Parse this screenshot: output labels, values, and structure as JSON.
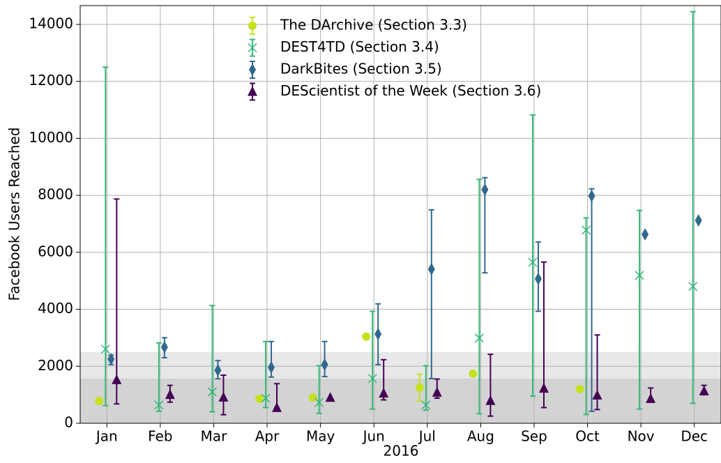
{
  "chart_data": {
    "type": "errorbar",
    "x_label": "2016",
    "y_label": "Facebook Users Reached",
    "categories": [
      "Jan",
      "Feb",
      "Mar",
      "Apr",
      "May",
      "Jun",
      "Jul",
      "Aug",
      "Sep",
      "Oct",
      "Nov",
      "Dec"
    ],
    "ylim": [
      0,
      14660
    ],
    "yticks": [
      0,
      2000,
      4000,
      6000,
      8000,
      10000,
      12000,
      14000
    ],
    "grid": true,
    "legend": "upper center",
    "bands": [
      {
        "from": 0,
        "to": 2500,
        "color": "#e8e8e8"
      },
      {
        "from": 0,
        "to": 1570,
        "color": "#d3d3d3"
      }
    ],
    "series": [
      {
        "name": "The DArchive (Section 3.3)",
        "color": "#c7e020",
        "marker": "circle",
        "values": [
          780,
          null,
          null,
          860,
          900,
          3040,
          1250,
          1740,
          null,
          1200,
          null,
          null
        ],
        "lower": [
          null,
          null,
          null,
          null,
          null,
          null,
          780,
          null,
          null,
          null,
          null,
          null
        ],
        "upper": [
          null,
          null,
          null,
          null,
          null,
          null,
          1720,
          null,
          null,
          null,
          null,
          null
        ]
      },
      {
        "name": "DEST4TD (Section 3.4)",
        "color": "#35b779",
        "marker": "x",
        "values": [
          2600,
          640,
          1100,
          880,
          730,
          1570,
          640,
          2990,
          5650,
          6780,
          5190,
          4800
        ],
        "lower": [
          620,
          420,
          400,
          550,
          350,
          500,
          460,
          330,
          950,
          310,
          500,
          700
        ],
        "upper": [
          12500,
          2820,
          4130,
          2870,
          2020,
          3930,
          2020,
          8560,
          10820,
          7210,
          7470,
          14450
        ]
      },
      {
        "name": "DarkBites (Section 3.5)",
        "color": "#31688e",
        "marker": "diamond",
        "values": [
          2250,
          2670,
          1860,
          1960,
          2060,
          3130,
          5410,
          8200,
          5070,
          7980,
          6630,
          7120
        ],
        "lower": [
          2060,
          2300,
          1560,
          1620,
          1640,
          2060,
          1570,
          5280,
          3930,
          420,
          null,
          null
        ],
        "upper": [
          2390,
          3000,
          2200,
          2870,
          2870,
          4190,
          7490,
          8620,
          6360,
          8230,
          null,
          null
        ]
      },
      {
        "name": "DEScientist of the Week (Section 3.6)",
        "color": "#440154",
        "marker": "triangle",
        "values": [
          1520,
          1000,
          910,
          540,
          900,
          1050,
          1080,
          790,
          1220,
          980,
          860,
          1130
        ],
        "lower": [
          680,
          740,
          300,
          540,
          null,
          820,
          880,
          250,
          550,
          480,
          760,
          1000
        ],
        "upper": [
          7870,
          1330,
          1690,
          1390,
          null,
          2230,
          1550,
          2420,
          5660,
          3100,
          1240,
          1330
        ]
      }
    ]
  }
}
